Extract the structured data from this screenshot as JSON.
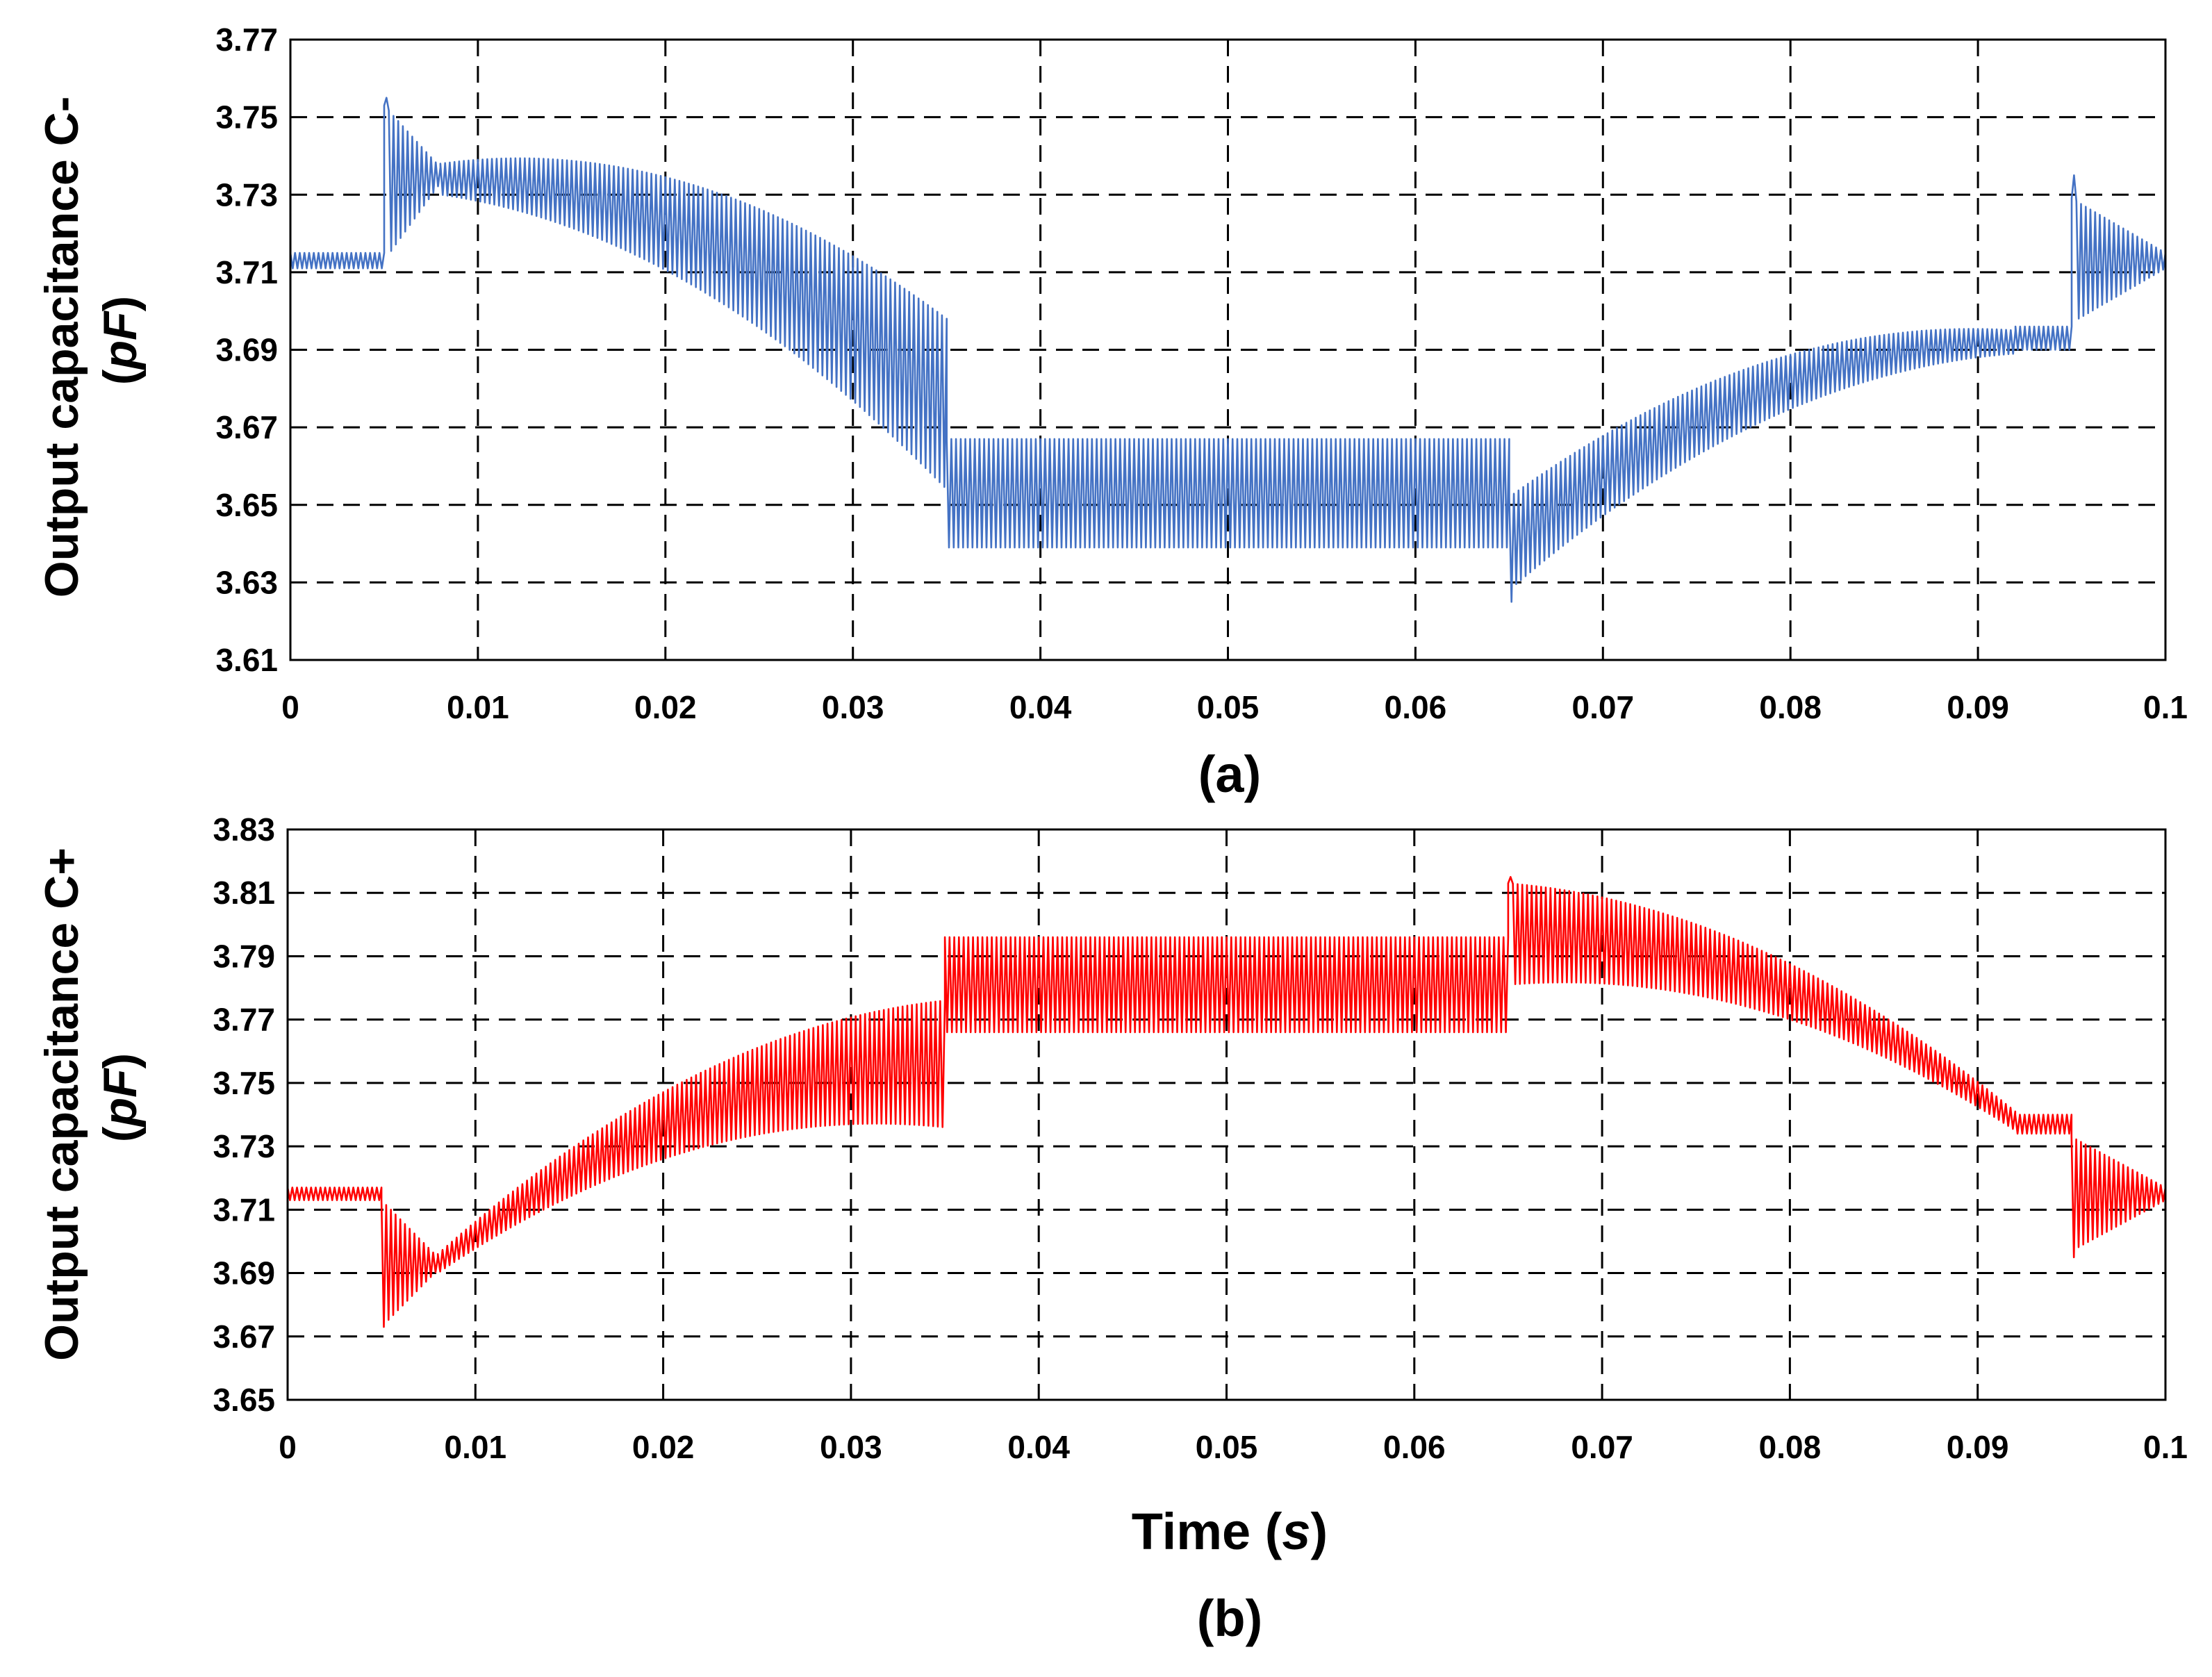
{
  "chart_data": [
    {
      "type": "line",
      "caption": "(a)",
      "ylabel_main": "Output  capacitance C-",
      "ylabel_unit": "pF",
      "xlabel": "",
      "xlim": [
        0,
        0.1
      ],
      "ylim": [
        3.61,
        3.77
      ],
      "xticks": [
        "0",
        "0.01",
        "0.02",
        "0.03",
        "0.04",
        "0.05",
        "0.06",
        "0.07",
        "0.08",
        "0.09",
        "0.1"
      ],
      "yticks": [
        "3.61",
        "3.63",
        "3.65",
        "3.67",
        "3.69",
        "3.71",
        "3.73",
        "3.75",
        "3.77"
      ],
      "grid": true,
      "color": "#4472C4",
      "series": [
        {
          "name": "C-",
          "segments": [
            {
              "t0": 0.0,
              "t1": 0.005,
              "center": [
                3.713,
                3.713
              ],
              "amp": [
                0.002,
                0.002
              ]
            },
            {
              "t0": 0.005,
              "t1": 0.008,
              "center": [
                3.733,
                3.735
              ],
              "amp": [
                0.02,
                0.002
              ],
              "spike": 3.755
            },
            {
              "t0": 0.008,
              "t1": 0.035,
              "shape": "down",
              "center": [
                3.734,
                3.676
              ],
              "amp": [
                0.004,
                0.022
              ]
            },
            {
              "t0": 0.035,
              "t1": 0.065,
              "center": [
                3.653,
                3.653
              ],
              "amp": [
                0.014,
                0.014
              ]
            },
            {
              "t0": 0.065,
              "t1": 0.092,
              "shape": "up",
              "center": [
                3.64,
                3.692
              ],
              "amp": [
                0.012,
                0.003
              ],
              "spike": 3.625
            },
            {
              "t0": 0.092,
              "t1": 0.095,
              "center": [
                3.693,
                3.693
              ],
              "amp": [
                0.003,
                0.003
              ]
            },
            {
              "t0": 0.095,
              "t1": 0.1,
              "center": [
                3.713,
                3.713
              ],
              "amp": [
                0.016,
                0.002
              ],
              "spike": 3.735
            }
          ]
        }
      ]
    },
    {
      "type": "line",
      "caption": "(b)",
      "ylabel_main": "Output capacitance C+",
      "ylabel_unit": "pF",
      "xlabel": "Time (s)",
      "xlabel_main": "Time",
      "xlabel_unit": "s",
      "xlim": [
        0,
        0.1
      ],
      "ylim": [
        3.65,
        3.83
      ],
      "xticks": [
        "0",
        "0.01",
        "0.02",
        "0.03",
        "0.04",
        "0.05",
        "0.06",
        "0.07",
        "0.08",
        "0.09",
        "0.1"
      ],
      "yticks": [
        "3.65",
        "3.67",
        "3.69",
        "3.71",
        "3.73",
        "3.75",
        "3.77",
        "3.79",
        "3.81",
        "3.83"
      ],
      "grid": true,
      "color": "#FF0000",
      "series": [
        {
          "name": "C+",
          "segments": [
            {
              "t0": 0.0,
              "t1": 0.005,
              "center": [
                3.715,
                3.715
              ],
              "amp": [
                0.002,
                0.002
              ]
            },
            {
              "t0": 0.005,
              "t1": 0.008,
              "center": [
                3.693,
                3.693
              ],
              "amp": [
                0.02,
                0.002
              ],
              "spike": 3.673
            },
            {
              "t0": 0.008,
              "t1": 0.035,
              "shape": "up",
              "center": [
                3.693,
                3.756
              ],
              "amp": [
                0.003,
                0.02
              ]
            },
            {
              "t0": 0.035,
              "t1": 0.065,
              "center": [
                3.781,
                3.781
              ],
              "amp": [
                0.015,
                0.015
              ]
            },
            {
              "t0": 0.065,
              "t1": 0.092,
              "shape": "down",
              "center": [
                3.797,
                3.738
              ],
              "amp": [
                0.016,
                0.003
              ],
              "spike": 3.815
            },
            {
              "t0": 0.092,
              "t1": 0.095,
              "center": [
                3.737,
                3.737
              ],
              "amp": [
                0.003,
                0.003
              ]
            },
            {
              "t0": 0.095,
              "t1": 0.1,
              "center": [
                3.715,
                3.715
              ],
              "amp": [
                0.018,
                0.002
              ],
              "spike": 3.695
            }
          ]
        }
      ]
    }
  ]
}
